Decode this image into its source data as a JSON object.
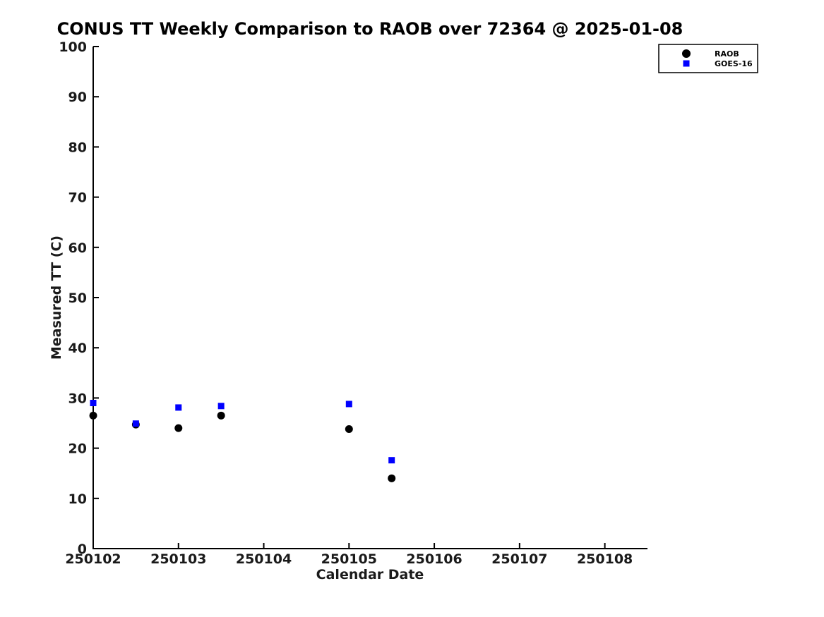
{
  "chart_data": {
    "type": "scatter",
    "title": "CONUS TT Weekly Comparison to RAOB over 72364 @ 2025-01-08",
    "xlabel": "Calendar Date",
    "ylabel": "Measured TT (C)",
    "xlim": [
      250102,
      250108.5
    ],
    "ylim": [
      0,
      100
    ],
    "x_ticks": [
      250102,
      250103,
      250104,
      250105,
      250106,
      250107,
      250108
    ],
    "y_ticks": [
      0,
      10,
      20,
      30,
      40,
      50,
      60,
      70,
      80,
      90,
      100
    ],
    "grid": false,
    "legend_position": "top-right",
    "colors": {
      "raob": "#000000",
      "goes16": "#0000ff",
      "text": "#1a1a1a",
      "axis": "#000000",
      "background": "#ffffff"
    },
    "series": [
      {
        "name": "RAOB",
        "marker": "circle",
        "color": "#000000",
        "points": [
          [
            250102.0,
            26.5
          ],
          [
            250102.5,
            24.7
          ],
          [
            250103.0,
            24.0
          ],
          [
            250103.5,
            26.5
          ],
          [
            250105.0,
            23.8
          ],
          [
            250105.5,
            14.0
          ]
        ]
      },
      {
        "name": "GOES-16",
        "marker": "square",
        "color": "#0000ff",
        "points": [
          [
            250102.0,
            29.0
          ],
          [
            250102.5,
            24.9
          ],
          [
            250103.0,
            28.1
          ],
          [
            250103.5,
            28.4
          ],
          [
            250105.0,
            28.8
          ],
          [
            250105.5,
            17.6
          ]
        ]
      }
    ]
  }
}
